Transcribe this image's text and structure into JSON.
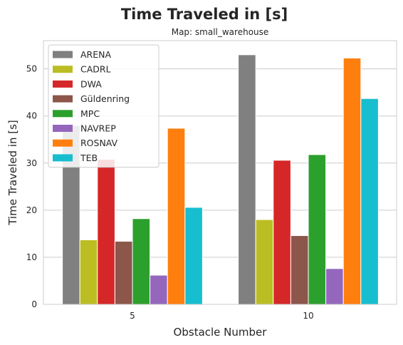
{
  "chart_data": {
    "type": "bar",
    "title": "Time Traveled in [s]",
    "subtitle": "Map: small_warehouse",
    "xlabel": "Obstacle Number",
    "ylabel": "Time Traveled in [s]",
    "categories": [
      "5",
      "10"
    ],
    "ylim": [
      0,
      56
    ],
    "yticks": [
      0,
      10,
      20,
      30,
      40,
      50
    ],
    "grid": true,
    "legend_position": "top-left",
    "series": [
      {
        "name": "ARENA",
        "color": "#808080",
        "values": [
          38.0,
          53.0
        ]
      },
      {
        "name": "CADRL",
        "color": "#bcbd22",
        "values": [
          13.7,
          18.0
        ]
      },
      {
        "name": "DWA",
        "color": "#d62728",
        "values": [
          30.8,
          30.6
        ]
      },
      {
        "name": "Güldenring",
        "color": "#8c564b",
        "values": [
          13.4,
          14.6
        ]
      },
      {
        "name": "MPC",
        "color": "#2ca02c",
        "values": [
          18.2,
          31.8
        ]
      },
      {
        "name": "NAVREP",
        "color": "#9467bd",
        "values": [
          6.2,
          7.6
        ]
      },
      {
        "name": "ROSNAV",
        "color": "#ff7f0e",
        "values": [
          37.4,
          52.3
        ]
      },
      {
        "name": "TEB",
        "color": "#17becf",
        "values": [
          20.6,
          43.7
        ]
      }
    ]
  }
}
